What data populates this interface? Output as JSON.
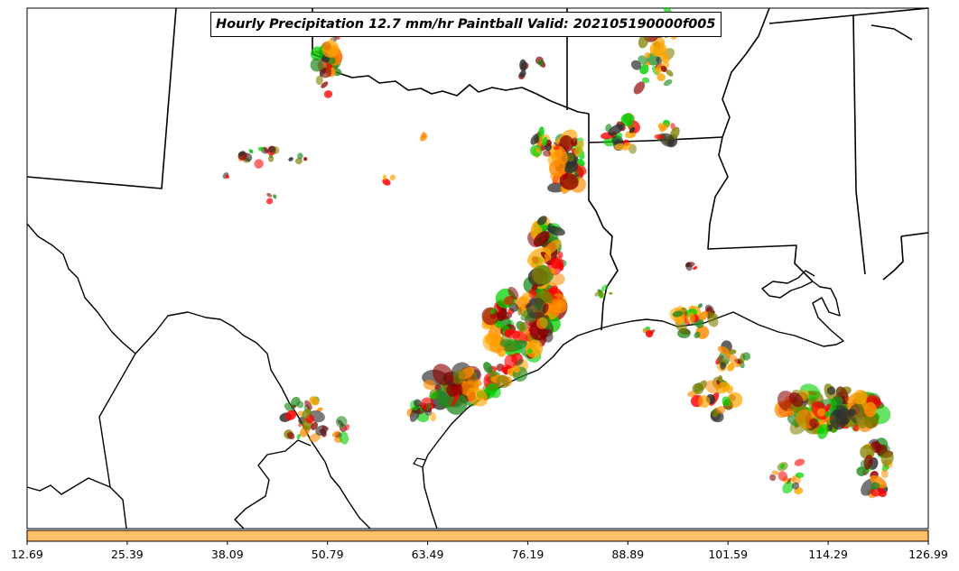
{
  "title": "Hourly Precipitation 12.7 mm/hr Paintball Valid: 202105190000f005",
  "colors": {
    "map_lines": "#000000",
    "colorbar": "#ffbf66",
    "paintball": [
      "#ff0000",
      "#ff8c00",
      "#228b22",
      "#00d000",
      "#808000",
      "#8b0000",
      "#ffa500",
      "#2f2f2f"
    ]
  },
  "colorbar": {
    "ticks": [
      "12.69",
      "25.39",
      "38.09",
      "50.79",
      "63.49",
      "76.19",
      "88.89",
      "101.59",
      "114.29",
      "126.99"
    ],
    "range": [
      12.69,
      126.99
    ]
  }
}
